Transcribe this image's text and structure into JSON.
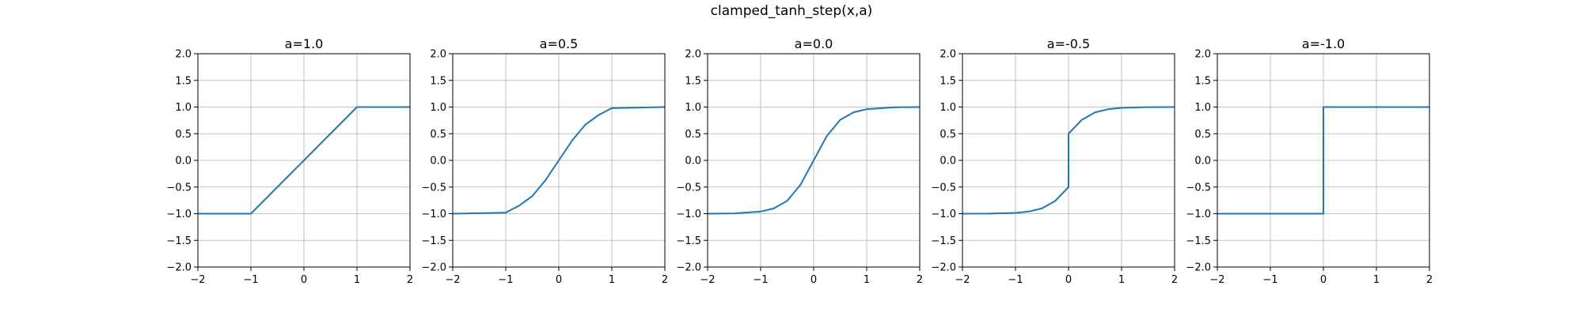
{
  "figure": {
    "suptitle": "clamped_tanh_step(x,a)"
  },
  "chart_data": [
    {
      "type": "line",
      "title": "a=1.0",
      "xlim": [
        -2,
        2
      ],
      "ylim": [
        -2,
        2
      ],
      "xticks": [
        -2,
        -1,
        0,
        1,
        2
      ],
      "xtick_labels": [
        "−2",
        "−1",
        "0",
        "1",
        "2"
      ],
      "yticks": [
        -2,
        -1.5,
        -1,
        -0.5,
        0,
        0.5,
        1,
        1.5,
        2
      ],
      "ytick_labels": [
        "−2.0",
        "−1.5",
        "−1.0",
        "−0.5",
        "0.0",
        "0.5",
        "1.0",
        "1.5",
        "2.0"
      ],
      "grid": true,
      "color": "#1f77b4",
      "x": [
        -2,
        -1,
        -0.5,
        0,
        0.5,
        1,
        2
      ],
      "y": [
        -1,
        -1,
        -0.5,
        0,
        0.5,
        1,
        1
      ]
    },
    {
      "type": "line",
      "title": "a=0.5",
      "xlim": [
        -2,
        2
      ],
      "ylim": [
        -2,
        2
      ],
      "xticks": [
        -2,
        -1,
        0,
        1,
        2
      ],
      "xtick_labels": [
        "−2",
        "−1",
        "0",
        "1",
        "2"
      ],
      "yticks": [
        -2,
        -1.5,
        -1,
        -0.5,
        0,
        0.5,
        1,
        1.5,
        2
      ],
      "ytick_labels": [
        "−2.0",
        "−1.5",
        "−1.0",
        "−0.5",
        "0.0",
        "0.5",
        "1.0",
        "1.5",
        "2.0"
      ],
      "grid": true,
      "color": "#1f77b4",
      "x": [
        -2,
        -1,
        -0.75,
        -0.5,
        -0.25,
        0,
        0.25,
        0.5,
        0.75,
        1,
        2
      ],
      "y": [
        -1,
        -0.98,
        -0.85,
        -0.67,
        -0.37,
        0,
        0.37,
        0.67,
        0.85,
        0.98,
        1
      ]
    },
    {
      "type": "line",
      "title": "a=0.0",
      "xlim": [
        -2,
        2
      ],
      "ylim": [
        -2,
        2
      ],
      "xticks": [
        -2,
        -1,
        0,
        1,
        2
      ],
      "xtick_labels": [
        "−2",
        "−1",
        "0",
        "1",
        "2"
      ],
      "yticks": [
        -2,
        -1.5,
        -1,
        -0.5,
        0,
        0.5,
        1,
        1.5,
        2
      ],
      "ytick_labels": [
        "−2.0",
        "−1.5",
        "−1.0",
        "−0.5",
        "0.0",
        "0.5",
        "1.0",
        "1.5",
        "2.0"
      ],
      "grid": true,
      "color": "#1f77b4",
      "x": [
        -2,
        -1.5,
        -1,
        -0.75,
        -0.5,
        -0.25,
        0,
        0.25,
        0.5,
        0.75,
        1,
        1.5,
        2
      ],
      "y": [
        -1,
        -0.995,
        -0.96,
        -0.9,
        -0.76,
        -0.46,
        0,
        0.46,
        0.76,
        0.9,
        0.96,
        0.995,
        1
      ]
    },
    {
      "type": "line",
      "title": "a=-0.5",
      "xlim": [
        -2,
        2
      ],
      "ylim": [
        -2,
        2
      ],
      "xticks": [
        -2,
        -1,
        0,
        1,
        2
      ],
      "xtick_labels": [
        "−2",
        "−1",
        "0",
        "1",
        "2"
      ],
      "yticks": [
        -2,
        -1.5,
        -1,
        -0.5,
        0,
        0.5,
        1,
        1.5,
        2
      ],
      "ytick_labels": [
        "−2.0",
        "−1.5",
        "−1.0",
        "−0.5",
        "0.0",
        "0.5",
        "1.0",
        "1.5",
        "2.0"
      ],
      "grid": true,
      "color": "#1f77b4",
      "x": [
        -2,
        -1.5,
        -1,
        -0.75,
        -0.5,
        -0.25,
        0,
        0,
        0.25,
        0.5,
        0.75,
        1,
        1.5,
        2
      ],
      "y": [
        -1,
        -0.998,
        -0.985,
        -0.96,
        -0.9,
        -0.76,
        -0.5,
        0.5,
        0.76,
        0.9,
        0.96,
        0.985,
        0.998,
        1
      ]
    },
    {
      "type": "line",
      "title": "a=-1.0",
      "xlim": [
        -2,
        2
      ],
      "ylim": [
        -2,
        2
      ],
      "xticks": [
        -2,
        -1,
        0,
        1,
        2
      ],
      "xtick_labels": [
        "−2",
        "−1",
        "0",
        "1",
        "2"
      ],
      "yticks": [
        -2,
        -1.5,
        -1,
        -0.5,
        0,
        0.5,
        1,
        1.5,
        2
      ],
      "ytick_labels": [
        "−2.0",
        "−1.5",
        "−1.0",
        "−0.5",
        "0.0",
        "0.5",
        "1.0",
        "1.5",
        "2.0"
      ],
      "grid": true,
      "color": "#1f77b4",
      "x": [
        -2,
        0,
        0,
        2
      ],
      "y": [
        -1,
        -1,
        1,
        1
      ]
    }
  ]
}
